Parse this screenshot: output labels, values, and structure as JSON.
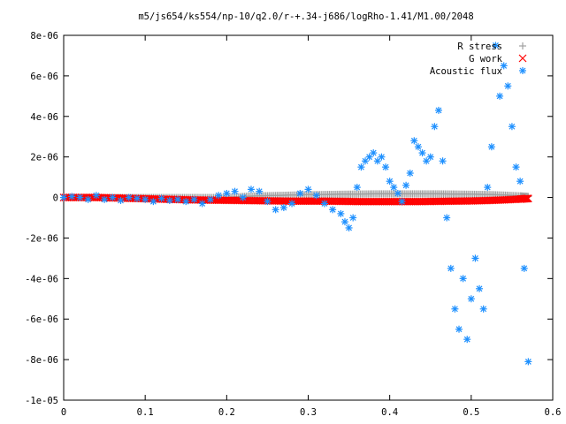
{
  "chart_data": {
    "type": "scatter",
    "title": "m5/js654/ks554/np-10/q2.0/r-+.34-j686/logRho-1.41/M1.00/2048",
    "xlabel": "",
    "ylabel": "",
    "xlim": [
      0,
      0.6
    ],
    "ylim": [
      -1e-05,
      8e-06
    ],
    "x_ticks": [
      "0",
      "0.1",
      "0.2",
      "0.3",
      "0.4",
      "0.5",
      "0.6"
    ],
    "y_ticks": [
      "8e-06",
      "6e-06",
      "4e-06",
      "2e-06",
      "0",
      "-2e-06",
      "-4e-06",
      "-6e-06",
      "-8e-06",
      "-1e-05"
    ],
    "legend_position": "top-right",
    "grid": false,
    "series": [
      {
        "name": "R stress",
        "marker": "plus",
        "color": "#a0a0a0",
        "x": [
          0,
          0.02,
          0.04,
          0.06,
          0.08,
          0.1,
          0.12,
          0.14,
          0.16,
          0.18,
          0.2,
          0.22,
          0.24,
          0.26,
          0.28,
          0.3,
          0.32,
          0.34,
          0.36,
          0.38,
          0.4,
          0.42,
          0.44,
          0.46,
          0.48,
          0.5,
          0.52,
          0.54,
          0.56,
          0.57
        ],
        "y": [
          0,
          0,
          0,
          0,
          0,
          0,
          0,
          0,
          0,
          0,
          0,
          5e-08,
          8e-08,
          1e-07,
          1.2e-07,
          1.4e-07,
          1.5e-07,
          1.6e-07,
          1.7e-07,
          1.8e-07,
          1.8e-07,
          1.8e-07,
          1.8e-07,
          1.8e-07,
          1.7e-07,
          1.6e-07,
          1.5e-07,
          1.2e-07,
          8e-08,
          5e-08
        ]
      },
      {
        "name": "G work",
        "marker": "cross",
        "color": "#ff0000",
        "x": [
          0,
          0.02,
          0.04,
          0.06,
          0.08,
          0.1,
          0.12,
          0.14,
          0.16,
          0.18,
          0.2,
          0.22,
          0.24,
          0.26,
          0.28,
          0.3,
          0.32,
          0.34,
          0.36,
          0.38,
          0.4,
          0.42,
          0.44,
          0.46,
          0.48,
          0.5,
          0.52,
          0.54,
          0.56,
          0.57
        ],
        "y": [
          0,
          0,
          0,
          -2e-08,
          -4e-08,
          -6e-08,
          -8e-08,
          -1e-07,
          -1.2e-07,
          -1.3e-07,
          -1.4e-07,
          -1.5e-07,
          -1.6e-07,
          -1.7e-07,
          -1.8e-07,
          -1.8e-07,
          -1.8e-07,
          -1.9e-07,
          -2e-07,
          -2e-07,
          -2e-07,
          -2e-07,
          -2e-07,
          -1.9e-07,
          -1.8e-07,
          -1.7e-07,
          -1.5e-07,
          -1.2e-07,
          -8e-08,
          -5e-08
        ]
      },
      {
        "name": "Acoustic flux",
        "marker": "star",
        "color": "#1e90ff",
        "x": [
          0.0,
          0.01,
          0.02,
          0.03,
          0.04,
          0.05,
          0.06,
          0.07,
          0.08,
          0.09,
          0.1,
          0.11,
          0.12,
          0.13,
          0.14,
          0.15,
          0.16,
          0.17,
          0.18,
          0.19,
          0.2,
          0.21,
          0.22,
          0.23,
          0.24,
          0.25,
          0.26,
          0.27,
          0.28,
          0.29,
          0.3,
          0.31,
          0.32,
          0.33,
          0.34,
          0.345,
          0.35,
          0.355,
          0.36,
          0.365,
          0.37,
          0.375,
          0.38,
          0.385,
          0.39,
          0.395,
          0.4,
          0.405,
          0.41,
          0.415,
          0.42,
          0.425,
          0.43,
          0.435,
          0.44,
          0.445,
          0.45,
          0.455,
          0.46,
          0.465,
          0.47,
          0.475,
          0.48,
          0.485,
          0.49,
          0.495,
          0.5,
          0.505,
          0.51,
          0.515,
          0.52,
          0.525,
          0.53,
          0.535,
          0.54,
          0.545,
          0.55,
          0.555,
          0.56,
          0.565,
          0.57
        ],
        "y": [
          0.0,
          5e-08,
          0.0,
          -1e-07,
          1e-07,
          -1e-07,
          0.0,
          -1.5e-07,
          0.0,
          -5e-08,
          -1e-07,
          -2e-07,
          -5e-08,
          -1.5e-07,
          -1e-07,
          -2e-07,
          -1e-07,
          -3e-07,
          -1e-07,
          1e-07,
          2e-07,
          3e-07,
          0.0,
          4e-07,
          3e-07,
          -2e-07,
          -6e-07,
          -5e-07,
          -3e-07,
          2e-07,
          4e-07,
          1e-07,
          -3e-07,
          -6e-07,
          -8e-07,
          -1.2e-06,
          -1.5e-06,
          -1e-06,
          5e-07,
          1.5e-06,
          1.8e-06,
          2e-06,
          2.2e-06,
          1.8e-06,
          2e-06,
          1.5e-06,
          8e-07,
          5e-07,
          2e-07,
          -2e-07,
          6e-07,
          1.2e-06,
          2.8e-06,
          2.5e-06,
          2.2e-06,
          1.8e-06,
          2e-06,
          3.5e-06,
          4.3e-06,
          1.8e-06,
          -1e-06,
          -3.5e-06,
          -5.5e-06,
          -6.5e-06,
          -4e-06,
          -7e-06,
          -5e-06,
          -3e-06,
          -4.5e-06,
          -5.5e-06,
          5e-07,
          2.5e-06,
          7.5e-06,
          5e-06,
          6.5e-06,
          5.5e-06,
          3.5e-06,
          1.5e-06,
          8e-07,
          -3.5e-06,
          -8.1e-06
        ]
      }
    ]
  }
}
